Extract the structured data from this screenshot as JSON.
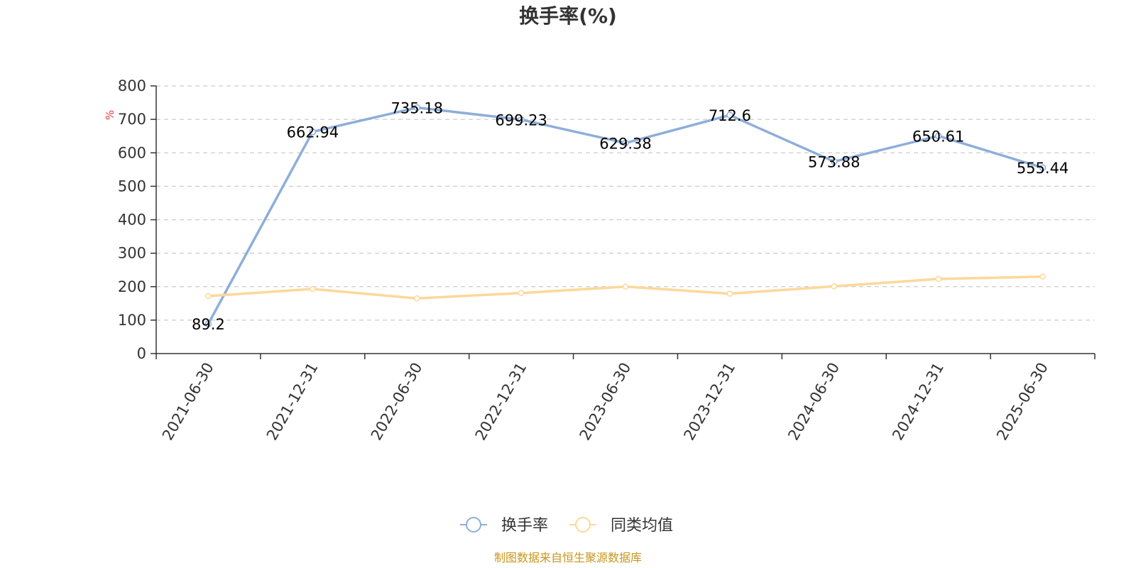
{
  "chart_data": {
    "type": "line",
    "title": "换手率(%)",
    "unit": "%",
    "categories": [
      "2021-06-30",
      "2021-12-31",
      "2022-06-30",
      "2022-12-31",
      "2023-06-30",
      "2023-12-31",
      "2024-06-30",
      "2024-12-31",
      "2025-06-30"
    ],
    "series": [
      {
        "name": "换手率",
        "color": "#8eaed9",
        "values": [
          89.2,
          662.94,
          735.18,
          699.23,
          629.38,
          712.6,
          573.88,
          650.61,
          555.44
        ],
        "labels": [
          "89.2",
          "662.94",
          "735.18",
          "699.23",
          "629.38",
          "712.6",
          "573.88",
          "650.61",
          "555.44"
        ]
      },
      {
        "name": "同类均值",
        "color": "#fcd89a",
        "values": [
          172,
          193,
          165,
          181,
          200,
          179,
          201,
          223,
          230
        ]
      }
    ],
    "ylim": [
      0,
      800
    ],
    "yticks": [
      "0",
      "100",
      "200",
      "300",
      "400",
      "500",
      "600",
      "700",
      "800"
    ],
    "grid": true,
    "legend_position": "bottom"
  },
  "source_note": "制图数据来自恒生聚源数据库"
}
